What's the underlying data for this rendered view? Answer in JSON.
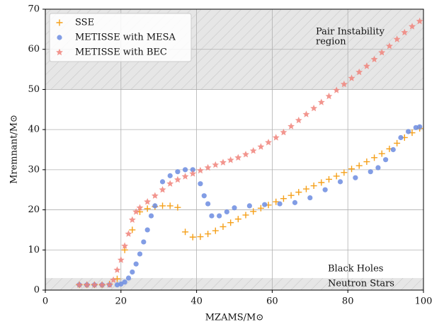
{
  "chart_data": {
    "type": "scatter",
    "xlabel": "MZAMS/M⊙",
    "ylabel": "Mremnant/M⊙",
    "xlim": [
      0,
      100
    ],
    "ylim": [
      0,
      70
    ],
    "xticks": [
      0,
      20,
      40,
      60,
      80,
      100
    ],
    "yticks": [
      0,
      10,
      20,
      30,
      40,
      50,
      60,
      70
    ],
    "grid": true,
    "legend": "upper left",
    "regions": [
      {
        "ymin": 50,
        "ymax": 70,
        "labels": [
          "Pair Instability",
          "region"
        ]
      },
      {
        "ymin": 0,
        "ymax": 3,
        "labels": [
          "Neutron Stars"
        ]
      }
    ],
    "annotations": [
      "Black Holes"
    ],
    "series": [
      {
        "name": "SSE",
        "marker": "plus",
        "color": "#f5a01a",
        "x": [
          9,
          11,
          13,
          15,
          17,
          19,
          21,
          23,
          25,
          27,
          29,
          31,
          33,
          35,
          37,
          39,
          41,
          43,
          45,
          47,
          49,
          51,
          53,
          55,
          57,
          59,
          61,
          63,
          65,
          67,
          69,
          71,
          73,
          75,
          77,
          79,
          81,
          83,
          85,
          87,
          89,
          91,
          93,
          95,
          97,
          99
        ],
        "values": [
          1.3,
          1.3,
          1.3,
          1.3,
          1.5,
          2.8,
          10,
          15,
          19.5,
          20.3,
          20.8,
          21,
          21,
          20.6,
          14.5,
          13.2,
          13.3,
          14,
          14.8,
          15.8,
          16.8,
          17.7,
          18.7,
          19.6,
          20.4,
          21.2,
          22,
          22.8,
          23.6,
          24.4,
          25.2,
          26,
          26.8,
          27.6,
          28.4,
          29.3,
          30.2,
          31,
          32,
          33,
          34,
          35.2,
          36.6,
          38,
          39.2,
          40.3
        ]
      },
      {
        "name": "METISSE with MESA",
        "marker": "circle",
        "color": "#6c8ce0",
        "x": [
          9,
          11,
          13,
          15,
          17,
          19,
          20,
          21,
          22,
          23,
          24,
          25,
          26,
          27,
          28,
          29,
          31,
          33,
          35,
          37,
          39,
          41,
          42,
          43,
          44,
          46,
          48,
          50,
          54,
          58,
          62,
          66,
          70,
          74,
          78,
          82,
          86,
          88,
          90,
          92,
          94,
          96,
          98,
          99
        ],
        "values": [
          1.3,
          1.3,
          1.3,
          1.3,
          1.3,
          1.3,
          1.5,
          2,
          3,
          4.5,
          6.5,
          9,
          12,
          15,
          18.5,
          21,
          27,
          28.5,
          29.5,
          30,
          30,
          26.5,
          23.5,
          21.5,
          18.5,
          18.5,
          19.5,
          20.5,
          21,
          21.3,
          21.5,
          21.8,
          23,
          25,
          27,
          28,
          29.5,
          30.5,
          32.5,
          35,
          38,
          39.5,
          40.5,
          40.7
        ]
      },
      {
        "name": "METISSE with BEC",
        "marker": "star",
        "color": "#f0837a",
        "x": [
          9,
          11,
          13,
          15,
          17,
          18,
          19,
          20,
          21,
          22,
          23,
          24,
          25,
          27,
          29,
          31,
          33,
          35,
          37,
          39,
          41,
          43,
          45,
          47,
          49,
          51,
          53,
          55,
          57,
          59,
          61,
          63,
          65,
          67,
          69,
          71,
          73,
          75,
          77,
          79,
          81,
          83,
          85,
          87,
          89,
          91,
          93,
          95,
          97,
          99
        ],
        "values": [
          1.3,
          1.3,
          1.3,
          1.3,
          1.3,
          2.5,
          5,
          7.5,
          11,
          14,
          17.5,
          19.5,
          20.5,
          22,
          23.5,
          25,
          26.5,
          27.5,
          28.3,
          29,
          29.8,
          30.5,
          31.2,
          31.8,
          32.4,
          33,
          33.8,
          34.7,
          35.7,
          36.8,
          38,
          39.3,
          40.8,
          42.3,
          43.8,
          45.3,
          46.8,
          48.3,
          49.8,
          51.3,
          52.8,
          54.3,
          55.8,
          57.5,
          59.2,
          60.8,
          62.5,
          64.2,
          65.7,
          67
        ]
      }
    ]
  }
}
